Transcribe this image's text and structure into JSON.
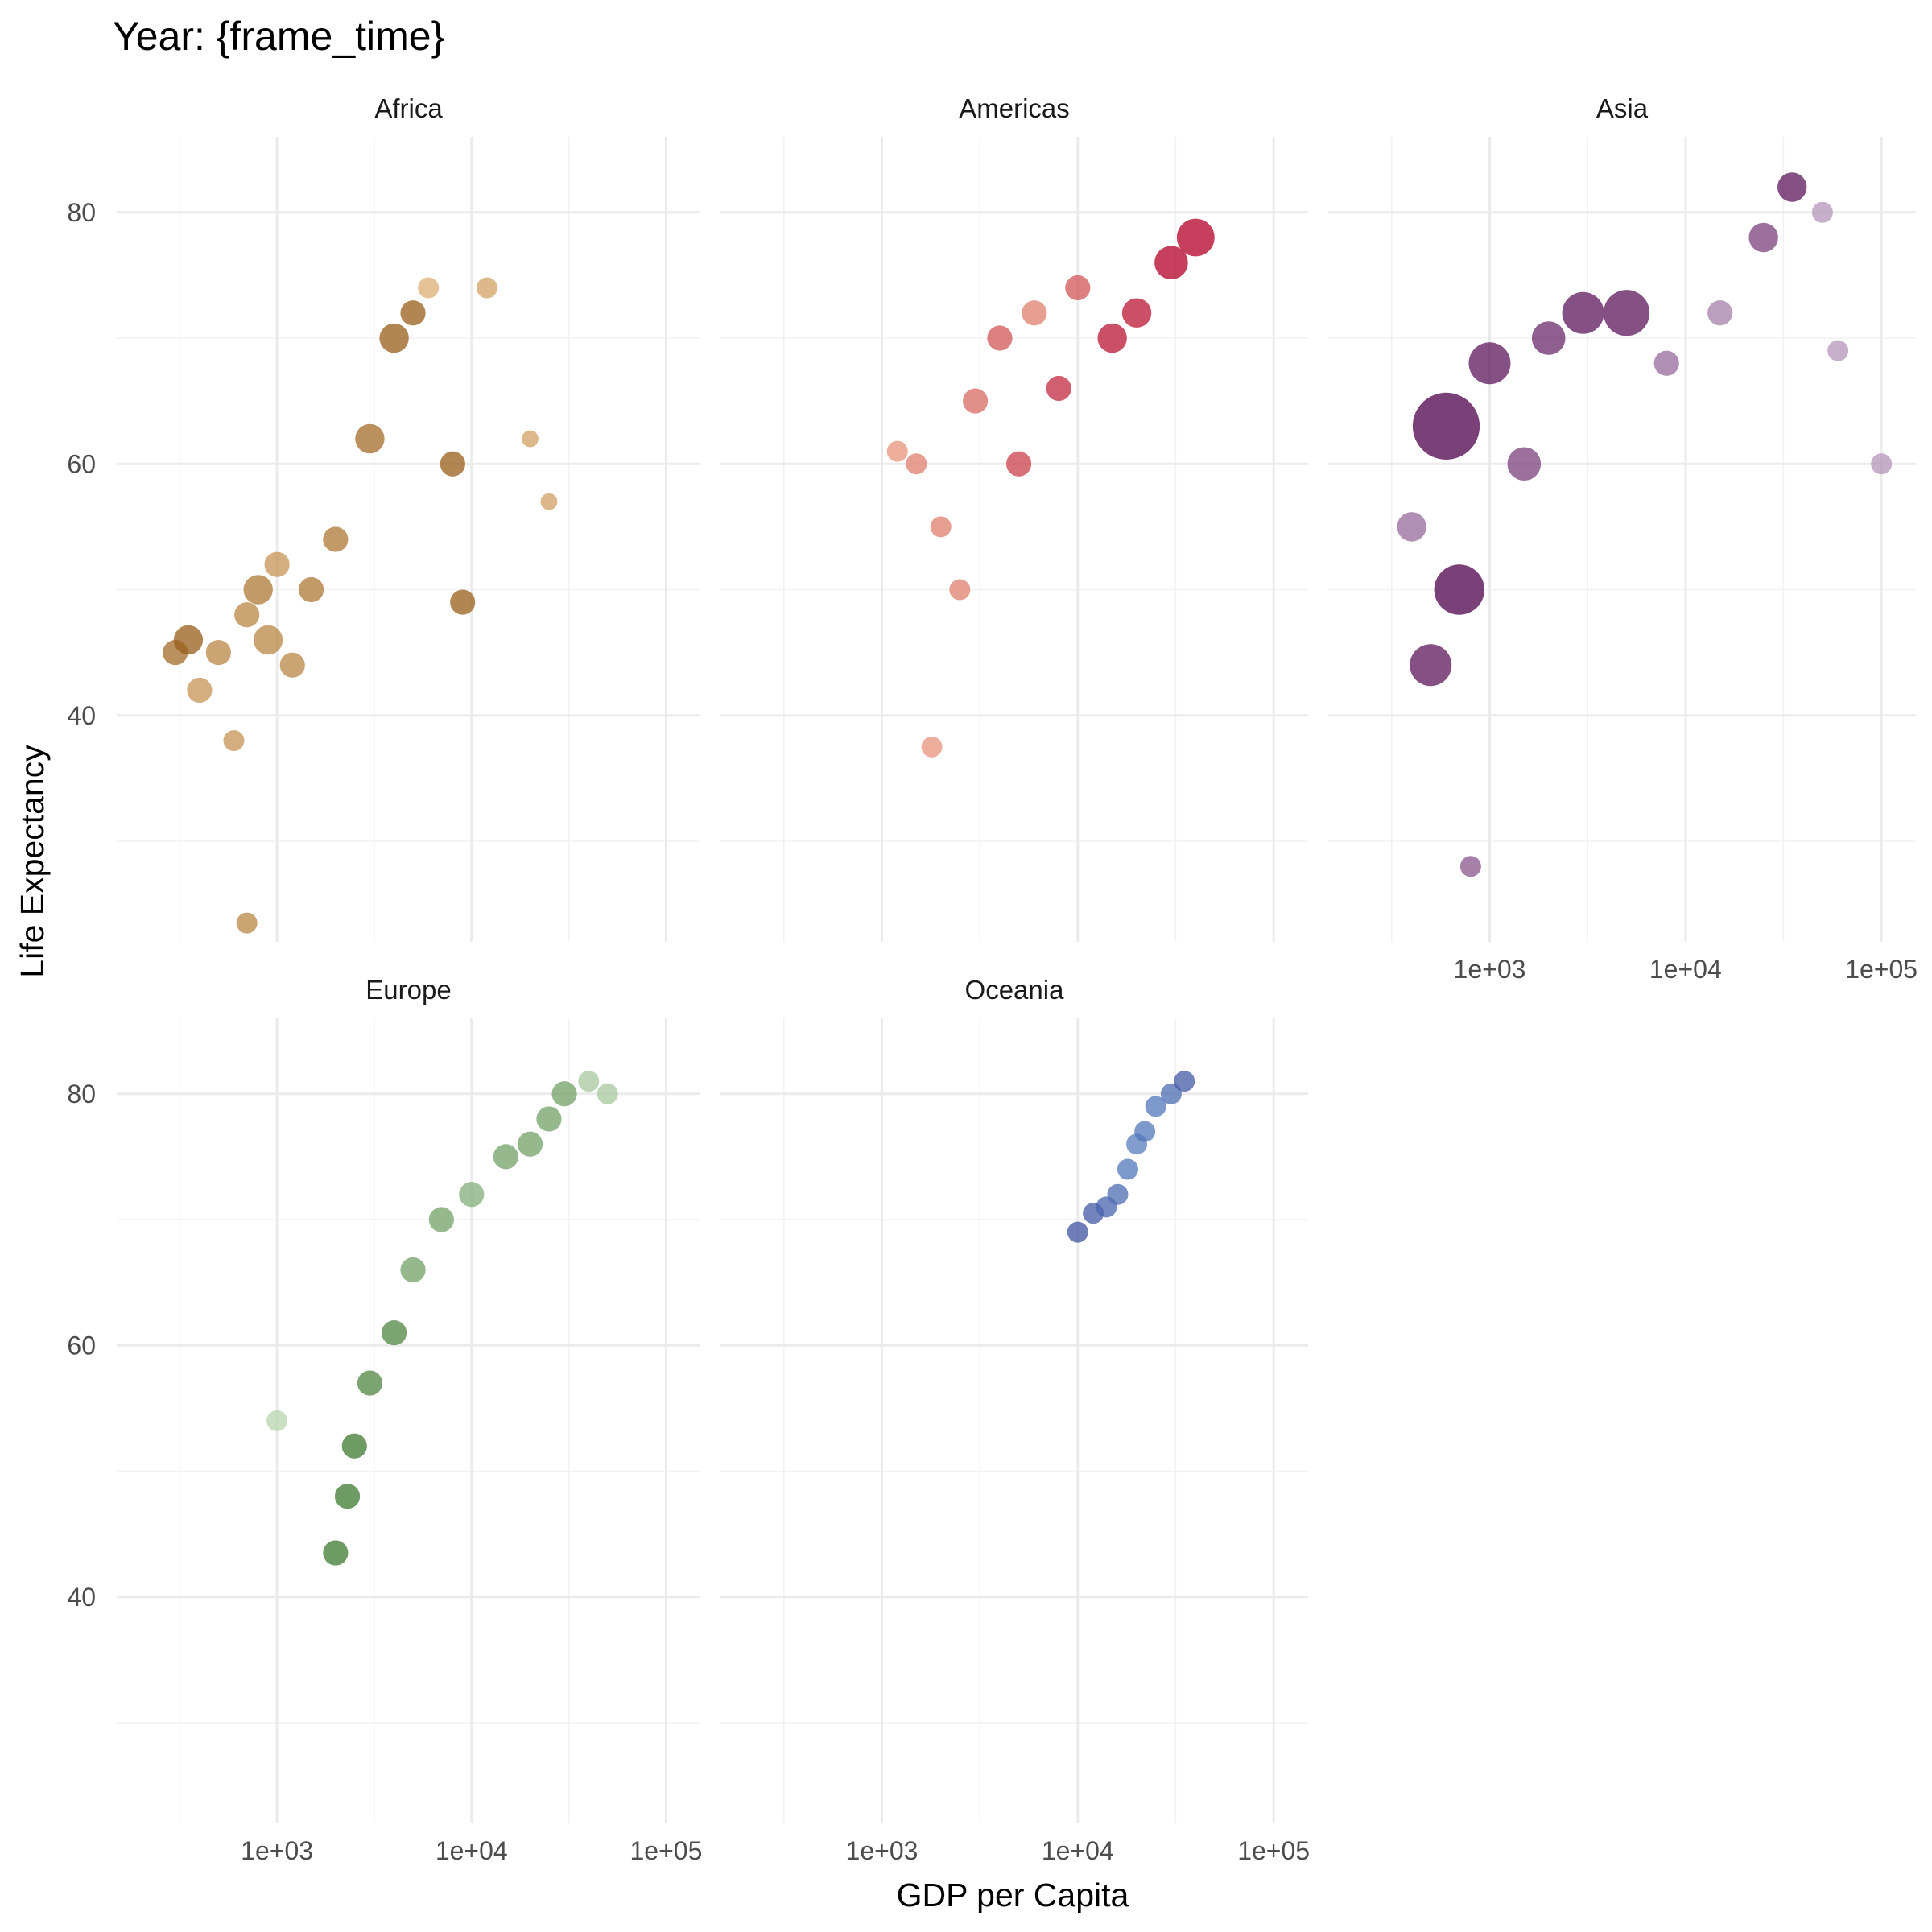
{
  "chart_data": {
    "type": "scatter",
    "title": "Year: {frame_time}",
    "xlabel": "GDP per Capita",
    "ylabel": "Life Expectancy",
    "x_scale": "log10",
    "xlim": [
      150,
      150000
    ],
    "ylim": [
      22,
      86
    ],
    "x_ticks": [
      1000,
      10000,
      100000
    ],
    "x_tick_labels": [
      "1e+03",
      "1e+04",
      "1e+05"
    ],
    "y_ticks": [
      40,
      60,
      80
    ],
    "y_tick_labels": [
      "40",
      "60",
      "80"
    ],
    "grid": true,
    "legend": "none",
    "facets": [
      {
        "name": "Africa",
        "colors": {
          "light": "#fdd49e",
          "dark": "#8c510a"
        },
        "points": [
          {
            "x": 400,
            "y": 42,
            "size": 6,
            "shade": 0.5
          },
          {
            "x": 500,
            "y": 45,
            "size": 6,
            "shade": 0.6
          },
          {
            "x": 600,
            "y": 38,
            "size": 5,
            "shade": 0.5
          },
          {
            "x": 700,
            "y": 48,
            "size": 6,
            "shade": 0.6
          },
          {
            "x": 800,
            "y": 50,
            "size": 7,
            "shade": 0.7
          },
          {
            "x": 900,
            "y": 46,
            "size": 7,
            "shade": 0.6
          },
          {
            "x": 1000,
            "y": 52,
            "size": 6,
            "shade": 0.5
          },
          {
            "x": 1200,
            "y": 44,
            "size": 6,
            "shade": 0.6
          },
          {
            "x": 1500,
            "y": 50,
            "size": 6,
            "shade": 0.7
          },
          {
            "x": 2000,
            "y": 54,
            "size": 6,
            "shade": 0.7
          },
          {
            "x": 3000,
            "y": 62,
            "size": 7,
            "shade": 0.8
          },
          {
            "x": 4000,
            "y": 70,
            "size": 7,
            "shade": 0.9
          },
          {
            "x": 5000,
            "y": 72,
            "size": 6,
            "shade": 0.9
          },
          {
            "x": 6000,
            "y": 74,
            "size": 5,
            "shade": 0.3
          },
          {
            "x": 8000,
            "y": 60,
            "size": 6,
            "shade": 0.9
          },
          {
            "x": 9000,
            "y": 49,
            "size": 6,
            "shade": 0.9
          },
          {
            "x": 12000,
            "y": 74,
            "size": 5,
            "shade": 0.4
          },
          {
            "x": 20000,
            "y": 62,
            "size": 4,
            "shade": 0.4
          },
          {
            "x": 25000,
            "y": 57,
            "size": 4,
            "shade": 0.4
          },
          {
            "x": 700,
            "y": 23.5,
            "size": 5,
            "shade": 0.6
          },
          {
            "x": 300,
            "y": 45,
            "size": 6,
            "shade": 0.8
          },
          {
            "x": 350,
            "y": 46,
            "size": 7,
            "shade": 0.9
          }
        ]
      },
      {
        "name": "Americas",
        "colors": {
          "light": "#fdd49e",
          "dark": "#b30027"
        },
        "points": [
          {
            "x": 1500,
            "y": 60,
            "size": 5,
            "shade": 0.4
          },
          {
            "x": 2000,
            "y": 55,
            "size": 5,
            "shade": 0.4
          },
          {
            "x": 2500,
            "y": 50,
            "size": 5,
            "shade": 0.4
          },
          {
            "x": 3000,
            "y": 65,
            "size": 6,
            "shade": 0.5
          },
          {
            "x": 4000,
            "y": 70,
            "size": 6,
            "shade": 0.6
          },
          {
            "x": 5000,
            "y": 60,
            "size": 6,
            "shade": 0.7
          },
          {
            "x": 6000,
            "y": 72,
            "size": 6,
            "shade": 0.4
          },
          {
            "x": 8000,
            "y": 66,
            "size": 6,
            "shade": 0.8
          },
          {
            "x": 10000,
            "y": 74,
            "size": 6,
            "shade": 0.6
          },
          {
            "x": 15000,
            "y": 70,
            "size": 7,
            "shade": 0.9
          },
          {
            "x": 20000,
            "y": 72,
            "size": 7,
            "shade": 0.9
          },
          {
            "x": 30000,
            "y": 76,
            "size": 8,
            "shade": 1.0
          },
          {
            "x": 40000,
            "y": 78,
            "size": 9,
            "shade": 1.0
          },
          {
            "x": 1800,
            "y": 37.5,
            "size": 5,
            "shade": 0.3
          },
          {
            "x": 1200,
            "y": 61,
            "size": 5,
            "shade": 0.3
          }
        ]
      },
      {
        "name": "Asia",
        "colors": {
          "light": "#e0d4ea",
          "dark": "#4d004b"
        },
        "points": [
          {
            "x": 400,
            "y": 55,
            "size": 7,
            "shade": 0.5
          },
          {
            "x": 500,
            "y": 44,
            "size": 10,
            "shade": 0.9
          },
          {
            "x": 600,
            "y": 63,
            "size": 16,
            "shade": 1.0
          },
          {
            "x": 700,
            "y": 50,
            "size": 12,
            "shade": 1.0
          },
          {
            "x": 800,
            "y": 28,
            "size": 5,
            "shade": 0.6
          },
          {
            "x": 1000,
            "y": 68,
            "size": 10,
            "shade": 0.9
          },
          {
            "x": 1500,
            "y": 60,
            "size": 8,
            "shade": 0.7
          },
          {
            "x": 2000,
            "y": 70,
            "size": 8,
            "shade": 0.8
          },
          {
            "x": 3000,
            "y": 72,
            "size": 10,
            "shade": 0.9
          },
          {
            "x": 5000,
            "y": 72,
            "size": 11,
            "shade": 0.9
          },
          {
            "x": 8000,
            "y": 68,
            "size": 6,
            "shade": 0.5
          },
          {
            "x": 15000,
            "y": 72,
            "size": 6,
            "shade": 0.4
          },
          {
            "x": 25000,
            "y": 78,
            "size": 7,
            "shade": 0.7
          },
          {
            "x": 35000,
            "y": 82,
            "size": 7,
            "shade": 0.9
          },
          {
            "x": 50000,
            "y": 80,
            "size": 5,
            "shade": 0.3
          },
          {
            "x": 60000,
            "y": 69,
            "size": 5,
            "shade": 0.3
          },
          {
            "x": 100000,
            "y": 60,
            "size": 5,
            "shade": 0.3
          }
        ]
      },
      {
        "name": "Europe",
        "colors": {
          "light": "#d9f0d3",
          "dark": "#2d6b1e"
        },
        "points": [
          {
            "x": 1000,
            "y": 54,
            "size": 5,
            "shade": 0.2
          },
          {
            "x": 2000,
            "y": 43.5,
            "size": 6,
            "shade": 0.9
          },
          {
            "x": 2300,
            "y": 48,
            "size": 6,
            "shade": 0.9
          },
          {
            "x": 2500,
            "y": 52,
            "size": 6,
            "shade": 0.9
          },
          {
            "x": 3000,
            "y": 57,
            "size": 6,
            "shade": 0.8
          },
          {
            "x": 4000,
            "y": 61,
            "size": 6,
            "shade": 0.8
          },
          {
            "x": 5000,
            "y": 66,
            "size": 6,
            "shade": 0.6
          },
          {
            "x": 7000,
            "y": 70,
            "size": 6,
            "shade": 0.6
          },
          {
            "x": 10000,
            "y": 72,
            "size": 6,
            "shade": 0.5
          },
          {
            "x": 15000,
            "y": 75,
            "size": 6,
            "shade": 0.6
          },
          {
            "x": 20000,
            "y": 76,
            "size": 6,
            "shade": 0.6
          },
          {
            "x": 25000,
            "y": 78,
            "size": 6,
            "shade": 0.6
          },
          {
            "x": 30000,
            "y": 80,
            "size": 6,
            "shade": 0.6
          },
          {
            "x": 40000,
            "y": 81,
            "size": 5,
            "shade": 0.3
          },
          {
            "x": 50000,
            "y": 80,
            "size": 5,
            "shade": 0.3
          }
        ]
      },
      {
        "name": "Oceania",
        "colors": {
          "light": "#6a9fd4",
          "dark": "#3a4a9c"
        },
        "points": [
          {
            "x": 10000,
            "y": 69,
            "size": 5,
            "shade": 0.9
          },
          {
            "x": 12000,
            "y": 70.5,
            "size": 5,
            "shade": 0.8
          },
          {
            "x": 14000,
            "y": 71,
            "size": 5,
            "shade": 0.7
          },
          {
            "x": 16000,
            "y": 72,
            "size": 5,
            "shade": 0.6
          },
          {
            "x": 18000,
            "y": 74,
            "size": 5,
            "shade": 0.5
          },
          {
            "x": 20000,
            "y": 76,
            "size": 5,
            "shade": 0.4
          },
          {
            "x": 22000,
            "y": 77,
            "size": 5,
            "shade": 0.5
          },
          {
            "x": 25000,
            "y": 79,
            "size": 5,
            "shade": 0.5
          },
          {
            "x": 30000,
            "y": 80,
            "size": 5,
            "shade": 0.6
          },
          {
            "x": 35000,
            "y": 81,
            "size": 5,
            "shade": 0.8
          }
        ]
      }
    ]
  }
}
